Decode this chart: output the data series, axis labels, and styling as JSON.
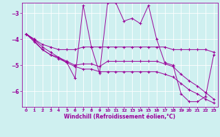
{
  "xlabel": "Windchill (Refroidissement éolien,°C)",
  "background_color": "#cff0f0",
  "line_color": "#990099",
  "grid_color": "#ffffff",
  "hours": [
    0,
    1,
    2,
    3,
    4,
    5,
    6,
    7,
    8,
    9,
    10,
    11,
    12,
    13,
    14,
    15,
    16,
    17,
    18,
    19,
    20,
    21,
    22,
    23
  ],
  "series1": [
    -3.8,
    -4.0,
    -4.3,
    -4.5,
    -4.7,
    -4.9,
    -5.5,
    -2.7,
    -4.3,
    -5.3,
    -2.6,
    -2.6,
    -3.3,
    -3.2,
    -3.4,
    -2.7,
    -4.0,
    -4.9,
    -5.0,
    -6.1,
    -6.4,
    -6.4,
    -6.2,
    -4.6
  ],
  "series2": [
    -3.8,
    -4.0,
    -4.2,
    -4.3,
    -4.4,
    -4.4,
    -4.4,
    -4.3,
    -4.3,
    -4.3,
    -4.3,
    -4.3,
    -4.3,
    -4.3,
    -4.3,
    -4.3,
    -4.3,
    -4.3,
    -4.4,
    -4.4,
    -4.4,
    -4.4,
    -4.4,
    -4.5
  ],
  "series3": [
    -3.8,
    -4.1,
    -4.4,
    -4.6,
    -4.7,
    -4.85,
    -5.0,
    -4.95,
    -4.95,
    -5.05,
    -4.85,
    -4.85,
    -4.85,
    -4.85,
    -4.85,
    -4.85,
    -4.85,
    -4.95,
    -5.05,
    -5.35,
    -5.6,
    -5.8,
    -6.05,
    -6.3
  ],
  "series4": [
    -3.8,
    -4.05,
    -4.4,
    -4.6,
    -4.75,
    -4.9,
    -5.05,
    -5.15,
    -5.15,
    -5.25,
    -5.25,
    -5.25,
    -5.25,
    -5.25,
    -5.25,
    -5.25,
    -5.25,
    -5.35,
    -5.45,
    -5.7,
    -5.95,
    -6.1,
    -6.3,
    -6.45
  ],
  "ylim": [
    -6.6,
    -2.6
  ],
  "yticks": [
    -6,
    -5,
    -4,
    -3
  ],
  "xlim": [
    -0.5,
    23.5
  ],
  "xticks": [
    0,
    1,
    2,
    3,
    4,
    5,
    6,
    7,
    8,
    9,
    10,
    11,
    12,
    13,
    14,
    15,
    16,
    17,
    18,
    19,
    20,
    21,
    22,
    23
  ]
}
